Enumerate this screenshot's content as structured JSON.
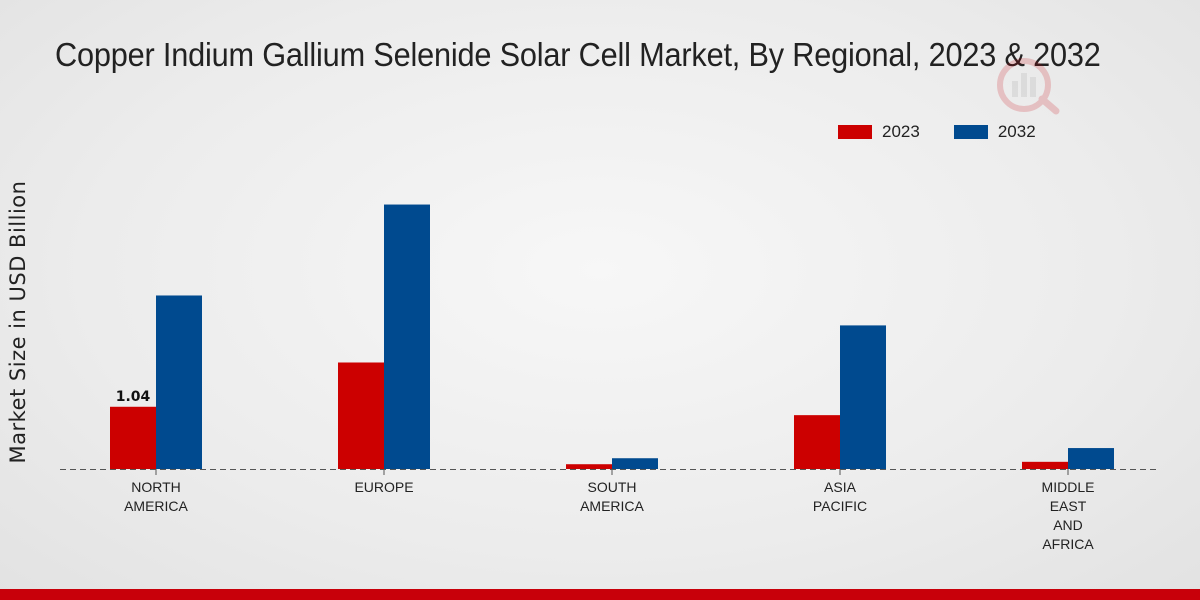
{
  "chart_data": {
    "type": "bar",
    "title": "Copper Indium Gallium Selenide Solar Cell Market, By Regional, 2023 & 2032",
    "ylabel": "Market Size in USD Billion",
    "xlabel": "",
    "categories": [
      [
        "NORTH",
        "AMERICA"
      ],
      [
        "EUROPE"
      ],
      [
        "SOUTH",
        "AMERICA"
      ],
      [
        "ASIA",
        "PACIFIC"
      ],
      [
        "MIDDLE",
        "EAST",
        "AND",
        "AFRICA"
      ]
    ],
    "series": [
      {
        "name": "2023",
        "color": "#cc0000",
        "values": [
          1.04,
          1.78,
          0.08,
          0.9,
          0.12
        ]
      },
      {
        "name": "2032",
        "color": "#004a8f",
        "values": [
          2.9,
          4.42,
          0.18,
          2.4,
          0.35
        ]
      }
    ],
    "data_labels": [
      {
        "series": 0,
        "index": 0,
        "text": "1.04"
      }
    ],
    "ylim": [
      0,
      6.0
    ],
    "grid": false,
    "legend": "top-right"
  },
  "brand": {
    "accent": "#c8000a"
  }
}
